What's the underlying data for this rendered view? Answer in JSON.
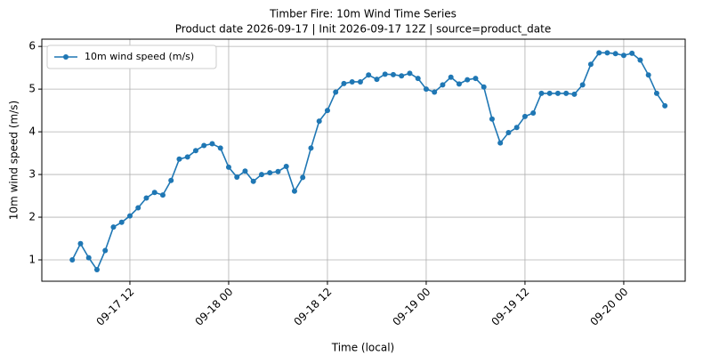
{
  "chart_data": {
    "type": "line",
    "title": "Timber Fire: 10m Wind Time Series",
    "subtitle": "Product date 2026-09-17 | Init 2026-09-17 12Z | source=product_date",
    "x_label": "Time (local)",
    "y_label": "10m wind speed (m/s)",
    "x": [
      "09-17 05",
      "09-17 06",
      "09-17 07",
      "09-17 08",
      "09-17 09",
      "09-17 10",
      "09-17 11",
      "09-17 12",
      "09-17 13",
      "09-17 14",
      "09-17 15",
      "09-17 16",
      "09-17 17",
      "09-17 18",
      "09-17 19",
      "09-17 20",
      "09-17 21",
      "09-17 22",
      "09-17 23",
      "09-18 00",
      "09-18 01",
      "09-18 02",
      "09-18 03",
      "09-18 04",
      "09-18 05",
      "09-18 06",
      "09-18 07",
      "09-18 08",
      "09-18 09",
      "09-18 10",
      "09-18 11",
      "09-18 12",
      "09-18 13",
      "09-18 14",
      "09-18 15",
      "09-18 16",
      "09-18 17",
      "09-18 18",
      "09-18 19",
      "09-18 20",
      "09-18 21",
      "09-18 22",
      "09-18 23",
      "09-19 00",
      "09-19 01",
      "09-19 02",
      "09-19 03",
      "09-19 04",
      "09-19 05",
      "09-19 06",
      "09-19 07",
      "09-19 08",
      "09-19 09",
      "09-19 10",
      "09-19 11",
      "09-19 12",
      "09-19 13",
      "09-19 14",
      "09-19 15",
      "09-19 16",
      "09-19 17",
      "09-19 18",
      "09-19 19",
      "09-19 20",
      "09-19 21",
      "09-19 22",
      "09-19 23",
      "09-20 00",
      "09-20 01",
      "09-20 02",
      "09-20 03",
      "09-20 04",
      "09-20 05"
    ],
    "series": [
      {
        "name": "10m wind speed (m/s)",
        "color": "#1f77b4",
        "values": [
          1.0,
          1.38,
          1.05,
          0.77,
          1.22,
          1.77,
          1.88,
          2.03,
          2.22,
          2.45,
          2.58,
          2.52,
          2.86,
          3.36,
          3.41,
          3.56,
          3.68,
          3.72,
          3.62,
          3.17,
          2.94,
          3.08,
          2.84,
          3.0,
          3.04,
          3.07,
          3.19,
          2.61,
          2.93,
          3.62,
          4.25,
          4.5,
          4.93,
          5.13,
          5.17,
          5.17,
          5.33,
          5.23,
          5.35,
          5.34,
          5.31,
          5.37,
          5.25,
          5.0,
          4.93,
          5.1,
          5.28,
          5.12,
          5.22,
          5.25,
          5.05,
          4.3,
          3.74,
          3.98,
          4.1,
          4.36,
          4.44,
          4.9,
          4.9,
          4.9,
          4.9,
          4.88,
          5.1,
          5.58,
          5.85,
          5.85,
          5.83,
          5.79,
          5.84,
          5.68,
          5.33,
          4.9,
          4.61
        ]
      }
    ],
    "xlim": [
      "09-17 01:18",
      "09-20 07:28"
    ],
    "xticks": [
      "09-17 12",
      "09-18 00",
      "09-18 12",
      "09-19 00",
      "09-19 12",
      "09-20 00"
    ],
    "ylim": [
      0.5,
      6.17
    ],
    "yticks": [
      1,
      2,
      3,
      4,
      5,
      6
    ],
    "grid": true,
    "legend": "upper-left"
  }
}
